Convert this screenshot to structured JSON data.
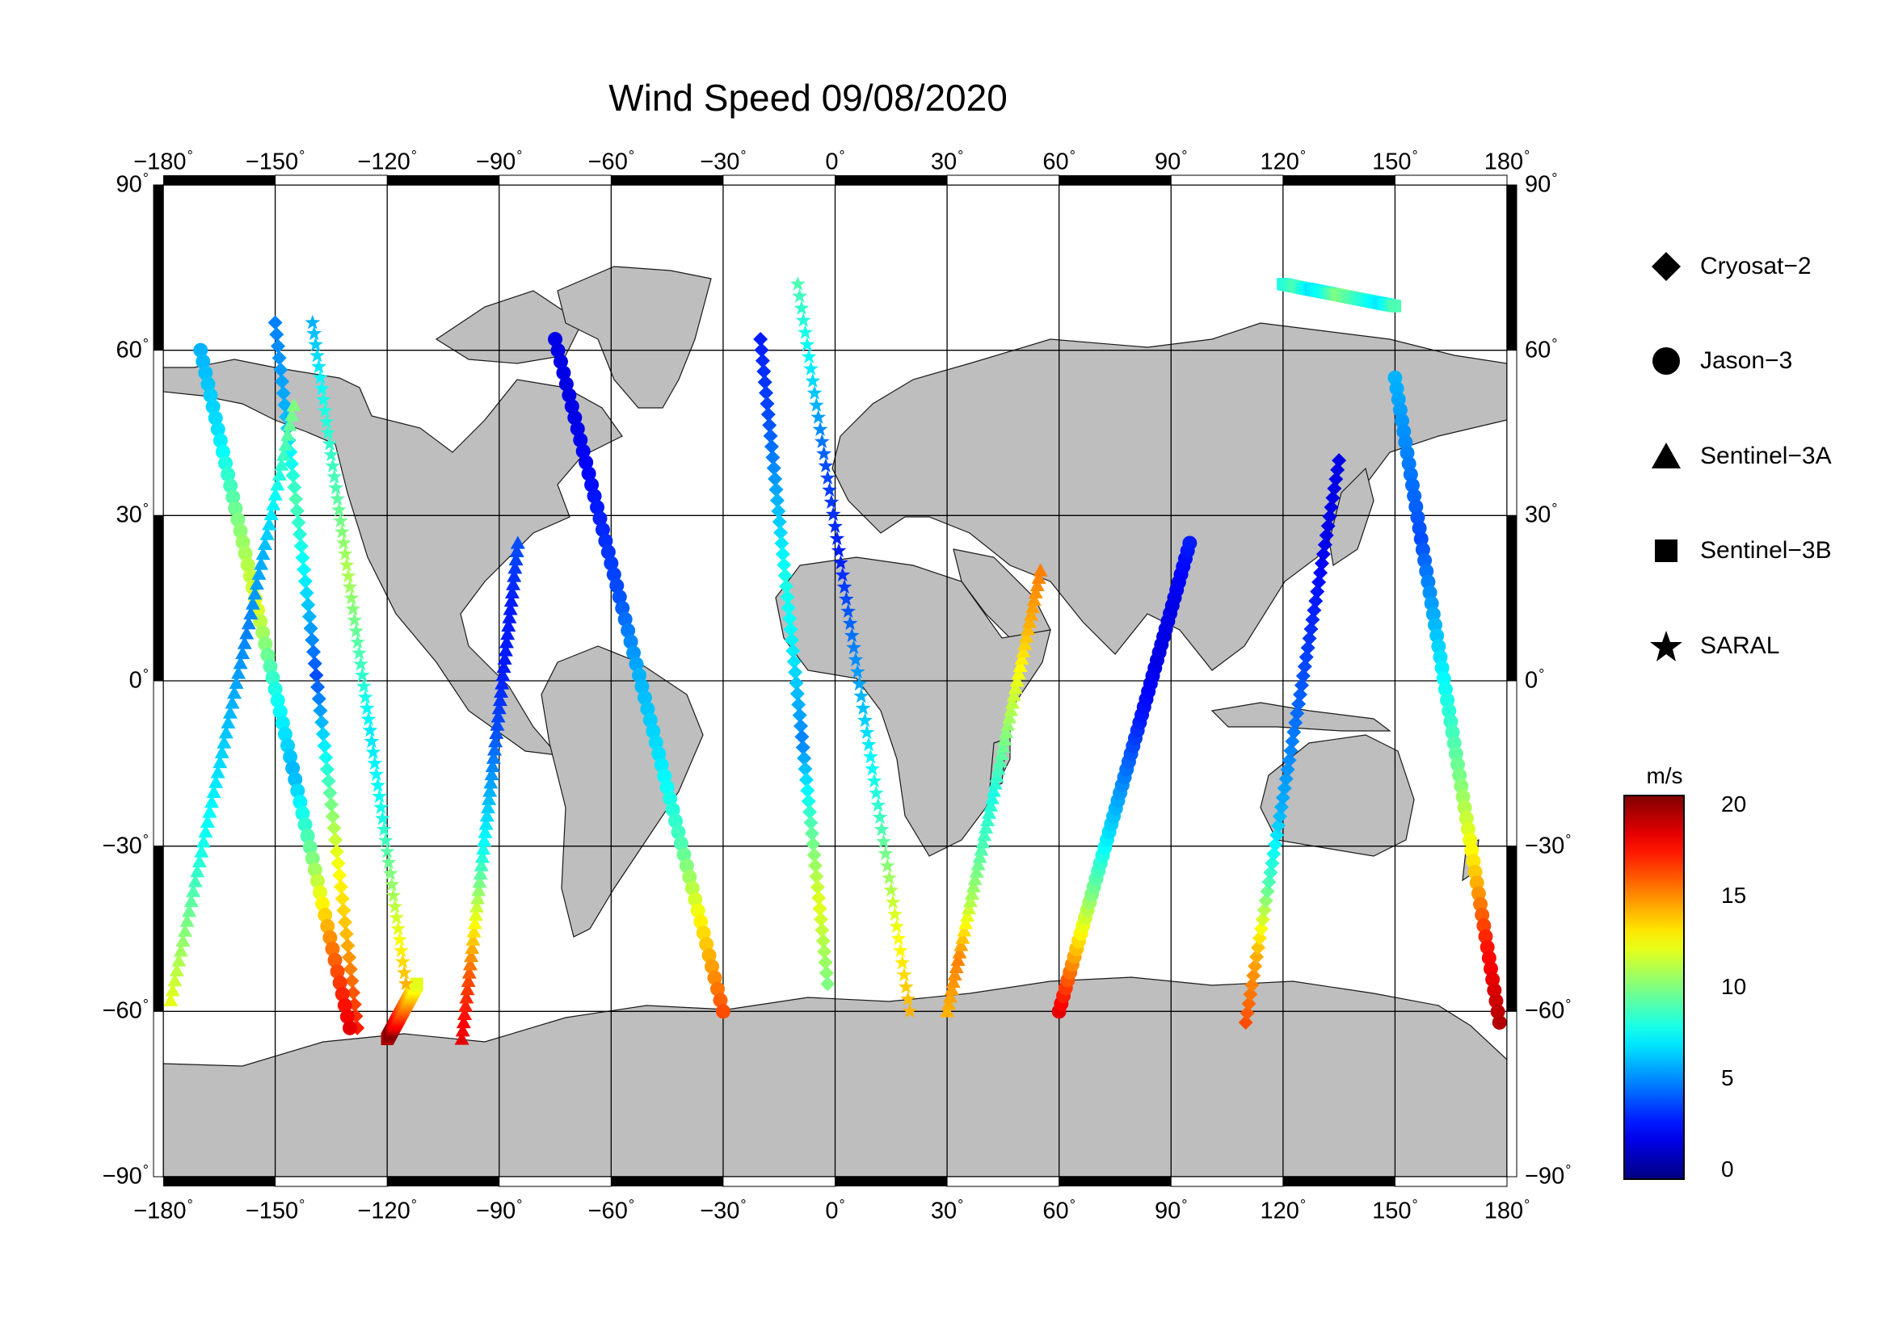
{
  "title": "Wind Speed 09/08/2020",
  "map": {
    "lon_range": [
      -180,
      180
    ],
    "lat_range": [
      -90,
      90
    ],
    "projection": "equirectangular",
    "grid_step_deg": 30,
    "land_color": "#bebebe",
    "ocean_color": "#ffffff",
    "x_ticks": [
      "−180",
      "−150",
      "−120",
      "−90",
      "−60",
      "−30",
      "0",
      "30",
      "60",
      "90",
      "120",
      "150",
      "180"
    ],
    "y_ticks": [
      "90",
      "60",
      "30",
      "0",
      "−30",
      "−60",
      "−90"
    ],
    "degree_symbol": "°"
  },
  "legend": {
    "items": [
      {
        "label": "Cryosat−2",
        "marker": "diamond-icon"
      },
      {
        "label": "Jason−3",
        "marker": "circle-icon"
      },
      {
        "label": "Sentinel−3A",
        "marker": "triangle-icon"
      },
      {
        "label": "Sentinel−3B",
        "marker": "square-icon"
      },
      {
        "label": "SARAL",
        "marker": "star-icon"
      }
    ]
  },
  "colorbar": {
    "unit": "m/s",
    "min": 0,
    "max": 20,
    "ticks": [
      "20",
      "15",
      "10",
      "5",
      "0"
    ],
    "colormap": "jet"
  },
  "chart_data": {
    "type": "scatter",
    "title": "Wind Speed 09/08/2020",
    "value_unit": "m/s",
    "series": [
      {
        "name": "Cryosat−2",
        "tracks": [
          {
            "lon": [
              -150,
              -128
            ],
            "lat": [
              65,
              -63
            ],
            "speed": [
              5,
              6,
              9,
              7,
              4,
              8,
              12,
              14,
              17
            ]
          },
          {
            "lon": [
              -20,
              -2
            ],
            "lat": [
              62,
              -55
            ],
            "speed": [
              3,
              4,
              6,
              8,
              7,
              5,
              9,
              12,
              10
            ]
          },
          {
            "lon": [
              110,
              135
            ],
            "lat": [
              -62,
              40
            ],
            "speed": [
              16,
              14,
              9,
              6,
              5,
              4,
              3,
              2,
              2
            ]
          }
        ]
      },
      {
        "name": "Jason−3",
        "tracks": [
          {
            "lon": [
              -170,
              -130
            ],
            "lat": [
              60,
              -63
            ],
            "speed": [
              6,
              7,
              10,
              12,
              8,
              6,
              10,
              15,
              18
            ]
          },
          {
            "lon": [
              -75,
              -30
            ],
            "lat": [
              62,
              -60
            ],
            "speed": [
              2,
              2,
              3,
              4,
              6,
              7,
              9,
              13,
              16
            ]
          },
          {
            "lon": [
              60,
              95
            ],
            "lat": [
              -60,
              25
            ],
            "speed": [
              18,
              14,
              10,
              7,
              5,
              3,
              2,
              2,
              3
            ]
          },
          {
            "lon": [
              150,
              178
            ],
            "lat": [
              55,
              -62
            ],
            "speed": [
              6,
              5,
              4,
              6,
              8,
              10,
              13,
              17,
              19
            ]
          }
        ]
      },
      {
        "name": "Sentinel−3A",
        "tracks": [
          {
            "lon": [
              -178,
              -145
            ],
            "lat": [
              -58,
              50
            ],
            "speed": [
              12,
              10,
              8,
              7,
              6,
              5,
              6,
              8,
              10
            ]
          },
          {
            "lon": [
              -100,
              -85
            ],
            "lat": [
              -65,
              25
            ],
            "speed": [
              18,
              16,
              12,
              8,
              6,
              4,
              3,
              3,
              4
            ]
          },
          {
            "lon": [
              30,
              55
            ],
            "lat": [
              -60,
              20
            ],
            "speed": [
              14,
              15,
              11,
              9,
              8,
              10,
              12,
              14,
              15
            ]
          }
        ]
      },
      {
        "name": "Sentinel−3B",
        "tracks": [
          {
            "lon": [
              -120,
              -112
            ],
            "lat": [
              -65,
              -55
            ],
            "speed": [
              19,
              20,
              18,
              17,
              16,
              15,
              14,
              13,
              12
            ]
          },
          {
            "lon": [
              120,
              150
            ],
            "lat": [
              72,
              68
            ],
            "speed": [
              8,
              9,
              7,
              8,
              10,
              9,
              8,
              7,
              9
            ]
          }
        ]
      },
      {
        "name": "SARAL",
        "tracks": [
          {
            "lon": [
              -10,
              20
            ],
            "lat": [
              72,
              -60
            ],
            "speed": [
              9,
              7,
              4,
              3,
              5,
              7,
              9,
              12,
              14
            ]
          },
          {
            "lon": [
              -140,
              -115
            ],
            "lat": [
              65,
              -55
            ],
            "speed": [
              6,
              8,
              9,
              11,
              9,
              7,
              8,
              11,
              14
            ]
          }
        ]
      }
    ]
  }
}
